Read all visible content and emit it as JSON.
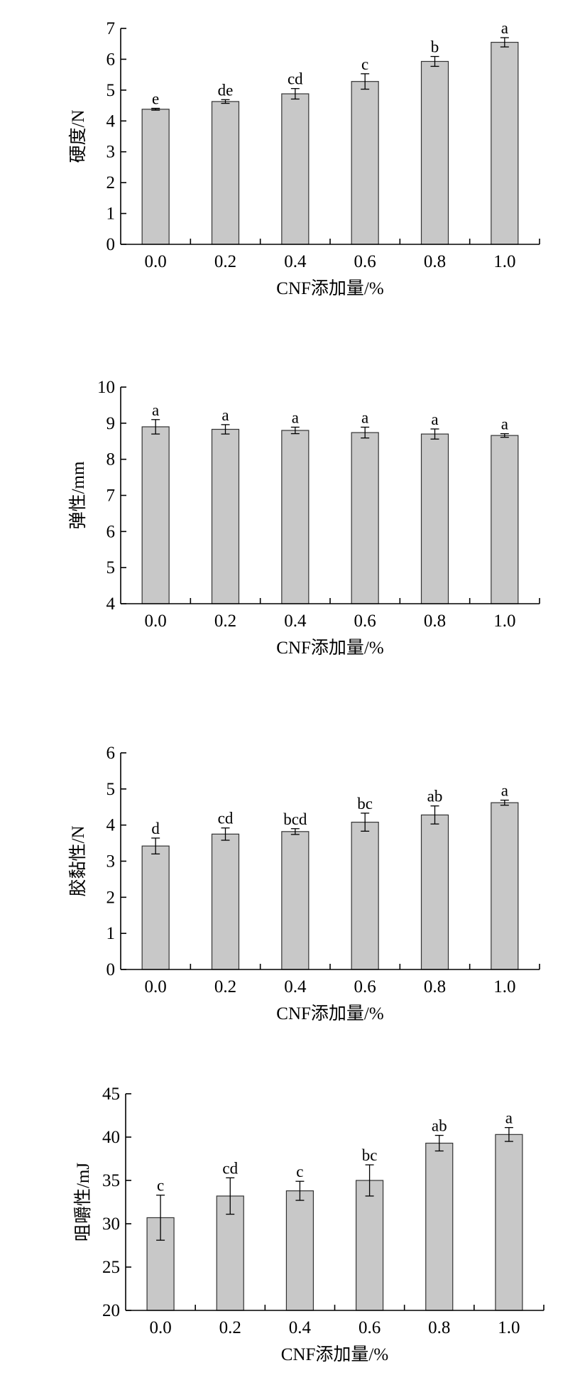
{
  "chart_data": [
    {
      "type": "bar",
      "categories": [
        "0.0",
        "0.2",
        "0.4",
        "0.6",
        "0.8",
        "1.0"
      ],
      "values": [
        4.38,
        4.63,
        4.88,
        5.28,
        5.93,
        6.55
      ],
      "errors": [
        0.03,
        0.06,
        0.17,
        0.25,
        0.16,
        0.15
      ],
      "group_labels": [
        "e",
        "de",
        "cd",
        "c",
        "b",
        "a"
      ],
      "xlabel": "CNF添加量/%",
      "ylabel": "硬度/N",
      "ylim": [
        0,
        7
      ],
      "yticks": [
        0,
        1,
        2,
        3,
        4,
        5,
        6,
        7
      ],
      "grid": false
    },
    {
      "type": "bar",
      "categories": [
        "0.0",
        "0.2",
        "0.4",
        "0.6",
        "0.8",
        "1.0"
      ],
      "values": [
        8.9,
        8.83,
        8.8,
        8.74,
        8.7,
        8.66
      ],
      "errors": [
        0.2,
        0.13,
        0.09,
        0.15,
        0.14,
        0.05
      ],
      "group_labels": [
        "a",
        "a",
        "a",
        "a",
        "a",
        "a"
      ],
      "xlabel": "CNF添加量/%",
      "ylabel": "弹性/mm",
      "ylim": [
        4,
        10
      ],
      "yticks": [
        4,
        5,
        6,
        7,
        8,
        9,
        10
      ],
      "grid": false
    },
    {
      "type": "bar",
      "categories": [
        "0.0",
        "0.2",
        "0.4",
        "0.6",
        "0.8",
        "1.0"
      ],
      "values": [
        3.42,
        3.75,
        3.82,
        4.08,
        4.28,
        4.62
      ],
      "errors": [
        0.22,
        0.17,
        0.08,
        0.25,
        0.25,
        0.07
      ],
      "group_labels": [
        "d",
        "cd",
        "bcd",
        "bc",
        "ab",
        "a"
      ],
      "xlabel": "CNF添加量/%",
      "ylabel": "胶黏性/N",
      "ylim": [
        0,
        6
      ],
      "yticks": [
        0,
        1,
        2,
        3,
        4,
        5,
        6
      ],
      "grid": false
    },
    {
      "type": "bar",
      "categories": [
        "0.0",
        "0.2",
        "0.4",
        "0.6",
        "0.8",
        "1.0"
      ],
      "values": [
        30.7,
        33.2,
        33.8,
        35.0,
        39.3,
        40.3
      ],
      "errors": [
        2.6,
        2.1,
        1.1,
        1.8,
        0.9,
        0.8
      ],
      "group_labels": [
        "c",
        "cd",
        "c",
        "bc",
        "ab",
        "a"
      ],
      "xlabel": "CNF添加量/%",
      "ylabel": "咀嚼性/mJ",
      "ylim": [
        20,
        45
      ],
      "yticks": [
        20,
        25,
        30,
        35,
        40,
        45
      ],
      "grid": false
    }
  ]
}
